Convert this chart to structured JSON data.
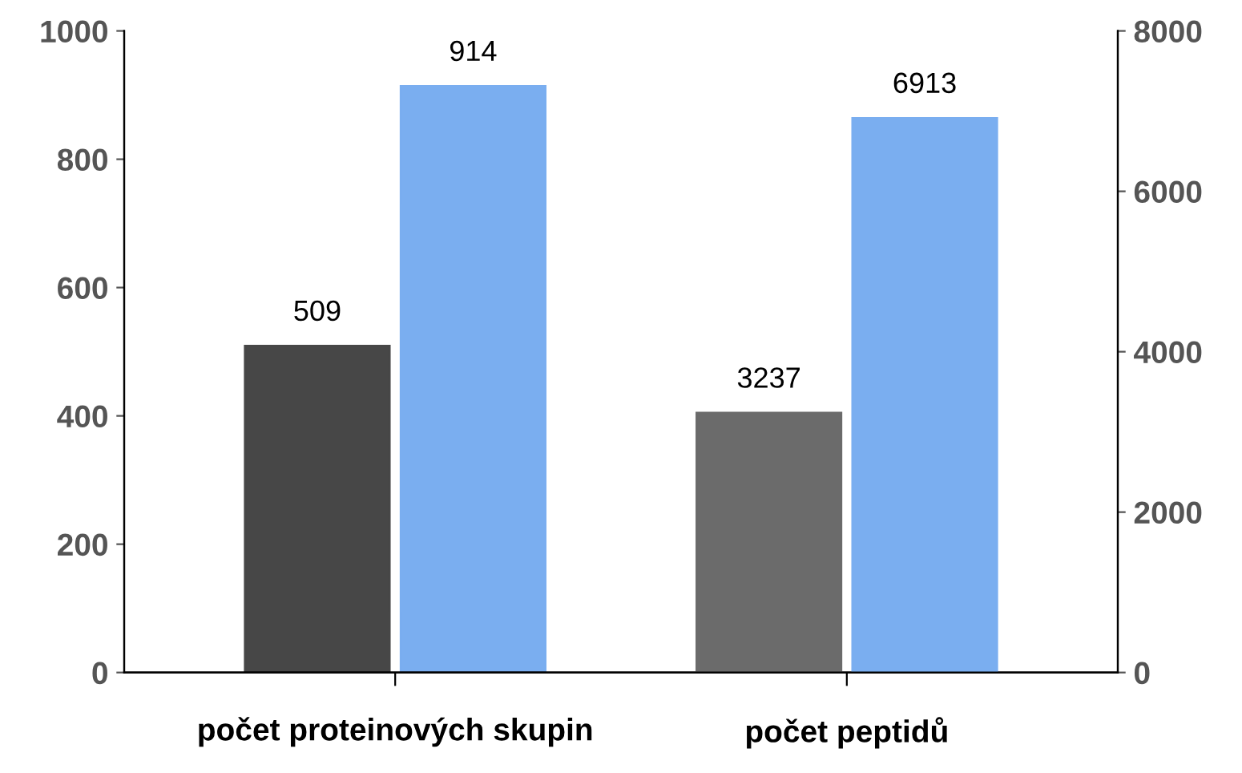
{
  "chart_data": {
    "type": "bar",
    "categories": [
      "počet proteinových skupin",
      "počet peptidů"
    ],
    "series": [
      {
        "color": "#474747",
        "values": [
          509,
          null
        ]
      },
      {
        "color": "#7aaef0",
        "values": [
          914,
          null
        ]
      },
      {
        "color": "#6b6b6b",
        "values": [
          null,
          3237
        ],
        "axis": "y2"
      },
      {
        "color": "#7aaef0",
        "values": [
          null,
          6913
        ],
        "axis": "y2"
      }
    ],
    "ylim": [
      0,
      1000
    ],
    "yticks": [
      0,
      200,
      400,
      600,
      800,
      1000
    ],
    "y2lim": [
      0,
      8000
    ],
    "y2ticks": [
      0,
      2000,
      4000,
      6000,
      8000
    ],
    "data_labels": true,
    "grid": false,
    "legend": false
  }
}
